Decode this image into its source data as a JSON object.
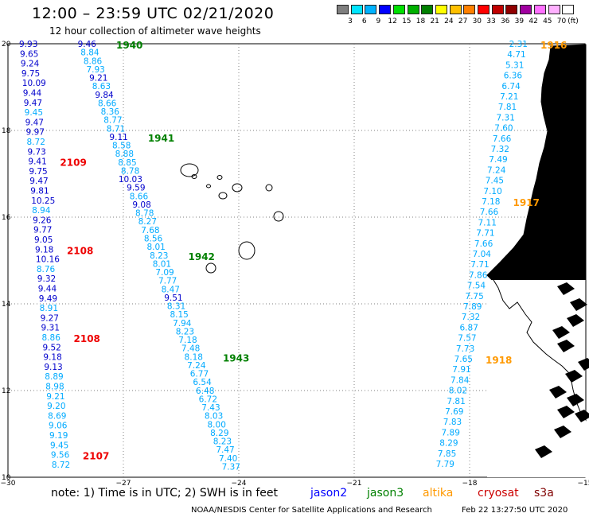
{
  "title": "12:00 – 23:59 UTC 02/21/2020",
  "subtitle": "12 hour collection of altimeter wave heights",
  "colorbar": {
    "labels": [
      "3",
      "6",
      "9",
      "12",
      "15",
      "18",
      "21",
      "24",
      "27",
      "30",
      "33",
      "36",
      "39",
      "42",
      "45",
      "70"
    ],
    "unit": "(ft)",
    "colors": [
      "#7f7f7f",
      "#00e5ff",
      "#00b2ff",
      "#0000ff",
      "#00e000",
      "#00b000",
      "#008000",
      "#ffff00",
      "#ffc000",
      "#ff8000",
      "#ff0000",
      "#c00000",
      "#900000",
      "#a000a0",
      "#ff70ff",
      "#ffb0ff",
      "#ffffff"
    ]
  },
  "axes": {
    "x_labels": [
      "−30",
      "−27",
      "−24",
      "−21",
      "−18",
      "−15"
    ],
    "y_labels": [
      "20",
      "18",
      "16",
      "14",
      "12",
      "10"
    ]
  },
  "legend": {
    "note": "note:  1) Time is in UTC;  2) SWH is in feet",
    "jason2": "jason2",
    "jason3": "jason3",
    "altika": "altika",
    "cryosat": "cryosat",
    "s3a": "s3a",
    "colors": {
      "jason2": "#0000ff",
      "jason3": "#008000",
      "altika": "#ff9900",
      "cryosat": "#cc0000",
      "s3a": "#800000"
    }
  },
  "credit": {
    "agency": "NOAA/NESDIS Center for Satellite Applications and Research",
    "stamp": "Feb 22 13:27:50 UTC 2020"
  },
  "passes": [
    {
      "satellite": "cryosat",
      "times": [
        {
          "label": "2109",
          "row": 12
        },
        {
          "label": "2108",
          "row": 21
        },
        {
          "label": "2108",
          "row": 30
        },
        {
          "label": "2107",
          "row": 42
        }
      ],
      "values": [
        "9.93",
        "9.65",
        "9.24",
        "9.75",
        "10.09",
        "9.44",
        "9.47",
        "9.45",
        "9.47",
        "9.97",
        "8.72",
        "9.73",
        "9.41",
        "9.75",
        "9.47",
        "9.81",
        "10.25",
        "8.94",
        "9.26",
        "9.77",
        "9.05",
        "9.18",
        "10.16",
        "8.76",
        "9.32",
        "9.44",
        "9.49",
        "8.91",
        "9.27",
        "9.31",
        "8.86",
        "9.52",
        "9.18",
        "9.13",
        "8.89",
        "8.98",
        "9.21",
        "9.20",
        "8.69",
        "9.06",
        "9.19",
        "9.45",
        "9.56",
        "8.72"
      ]
    },
    {
      "satellite": "jason3",
      "times": [
        {
          "label": "1940",
          "row": 0
        },
        {
          "label": "1941",
          "row": 11
        },
        {
          "label": "1942",
          "row": 25
        },
        {
          "label": "1943",
          "row": 37
        }
      ],
      "values": [
        "9.46",
        "8.84",
        "8.86",
        "7.93",
        "9.21",
        "8.63",
        "9.84",
        "8.66",
        "8.36",
        "8.77",
        "8.71",
        "9.11",
        "8.58",
        "8.88",
        "8.85",
        "8.78",
        "10.03",
        "9.59",
        "8.66",
        "9.08",
        "8.78",
        "8.27",
        "7.68",
        "8.56",
        "8.01",
        "8.23",
        "8.01",
        "7.09",
        "7.77",
        "8.47",
        "9.51",
        "8.31",
        "8.15",
        "7.94",
        "8.23",
        "7.18",
        "7.48",
        "8.18",
        "7.24",
        "6.77",
        "6.54",
        "6.48",
        "6.72",
        "7.43",
        "8.03",
        "8.00",
        "8.29",
        "8.23",
        "7.47",
        "7.40",
        "7.37"
      ]
    },
    {
      "satellite": "altika",
      "times": [
        {
          "label": "1916",
          "row": 0
        },
        {
          "label": "1917",
          "row": 15
        },
        {
          "label": "1918",
          "row": 30
        }
      ],
      "values": [
        "2.31",
        "4.71",
        "5.31",
        "6.36",
        "6.74",
        "7.21",
        "7.81",
        "7.31",
        "7.60",
        "7.66",
        "7.32",
        "7.49",
        "7.24",
        "7.45",
        "7.10",
        "7.18",
        "7.66",
        "7.11",
        "7.71",
        "7.66",
        "7.04",
        "7.71",
        "7.86",
        "7.54",
        "7.75",
        "7.89",
        "7.32",
        "6.87",
        "7.57",
        "7.73",
        "7.65",
        "7.91",
        "7.84",
        "8.02",
        "7.81",
        "7.69",
        "7.83",
        "7.89",
        "8.29",
        "7.85",
        "7.79"
      ]
    }
  ]
}
